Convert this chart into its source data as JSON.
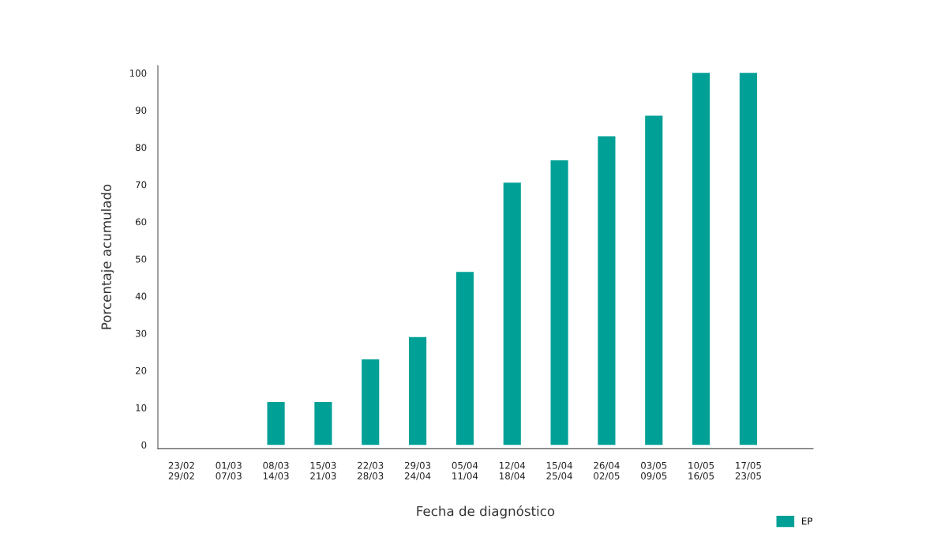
{
  "chart_data": {
    "type": "bar",
    "xlabel": "Fecha de diagnóstico",
    "ylabel": "Porcentaje acumulado",
    "categories": [
      "23/02\n29/02",
      "01/03\n07/03",
      "08/03\n14/03",
      "15/03\n21/03",
      "22/03\n28/03",
      "29/03\n24/04",
      "05/04\n11/04",
      "12/04\n18/04",
      "15/04\n25/04",
      "26/04\n02/05",
      "03/05\n09/05",
      "10/05\n16/05",
      "17/05\n23/05"
    ],
    "series": [
      {
        "name": "EP",
        "color": "#00a096",
        "values": [
          0,
          0,
          11.5,
          11.5,
          23,
          29,
          46.5,
          70.5,
          76.5,
          83,
          88.5,
          100,
          100
        ]
      }
    ],
    "ylim": [
      -1,
      102
    ],
    "yticks": [
      0,
      10,
      20,
      30,
      40,
      50,
      60,
      70,
      80,
      90,
      100
    ],
    "grid": false,
    "legend": "bottom right"
  }
}
